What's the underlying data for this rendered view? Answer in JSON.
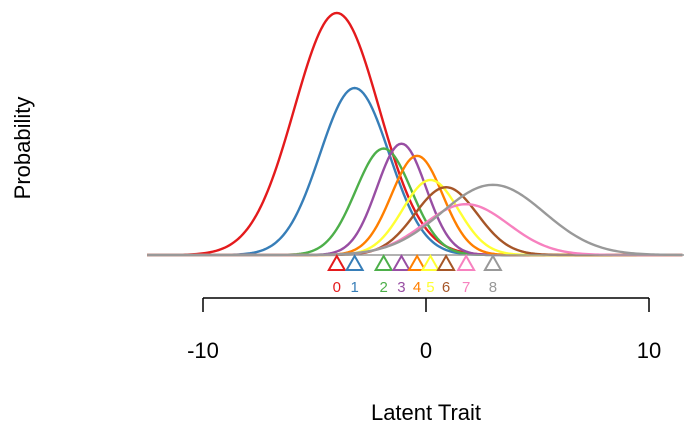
{
  "chart_data": {
    "type": "line",
    "xlabel": "Latent Trait",
    "ylabel": "Probability",
    "xlim": [
      -12.5,
      11.5
    ],
    "x_ticks": [
      -10,
      0,
      10
    ],
    "x_tick_labels": [
      "-10",
      "0",
      "10"
    ],
    "grid": false,
    "series": [
      {
        "name": "0",
        "color": "#e41a1c",
        "mean": -4.0,
        "sd": 1.9,
        "peak": 1.0
      },
      {
        "name": "1",
        "color": "#377eb8",
        "mean": -3.2,
        "sd": 1.55,
        "peak": 0.69
      },
      {
        "name": "2",
        "color": "#4daf4a",
        "mean": -1.9,
        "sd": 1.25,
        "peak": 0.44
      },
      {
        "name": "3",
        "color": "#984ea3",
        "mean": -1.1,
        "sd": 1.1,
        "peak": 0.46
      },
      {
        "name": "4",
        "color": "#ff7f00",
        "mean": -0.4,
        "sd": 1.15,
        "peak": 0.41
      },
      {
        "name": "5",
        "color": "#ffff33",
        "mean": 0.2,
        "sd": 1.25,
        "peak": 0.31
      },
      {
        "name": "6",
        "color": "#a65628",
        "mean": 0.9,
        "sd": 1.4,
        "peak": 0.28
      },
      {
        "name": "7",
        "color": "#f781bf",
        "mean": 1.8,
        "sd": 1.9,
        "peak": 0.21
      },
      {
        "name": "8",
        "color": "#999999",
        "mean": 3.0,
        "sd": 2.3,
        "peak": 0.29
      }
    ],
    "markers": [
      {
        "label": "0",
        "x": -4.0,
        "color": "#e41a1c"
      },
      {
        "label": "1",
        "x": -3.2,
        "color": "#377eb8"
      },
      {
        "label": "2",
        "x": -1.9,
        "color": "#4daf4a"
      },
      {
        "label": "3",
        "x": -1.1,
        "color": "#984ea3"
      },
      {
        "label": "4",
        "x": -0.4,
        "color": "#ff7f00"
      },
      {
        "label": "5",
        "x": 0.2,
        "color": "#ffff33"
      },
      {
        "label": "6",
        "x": 0.9,
        "color": "#a65628"
      },
      {
        "label": "7",
        "x": 1.8,
        "color": "#f781bf"
      },
      {
        "label": "8",
        "x": 3.0,
        "color": "#999999"
      }
    ]
  }
}
